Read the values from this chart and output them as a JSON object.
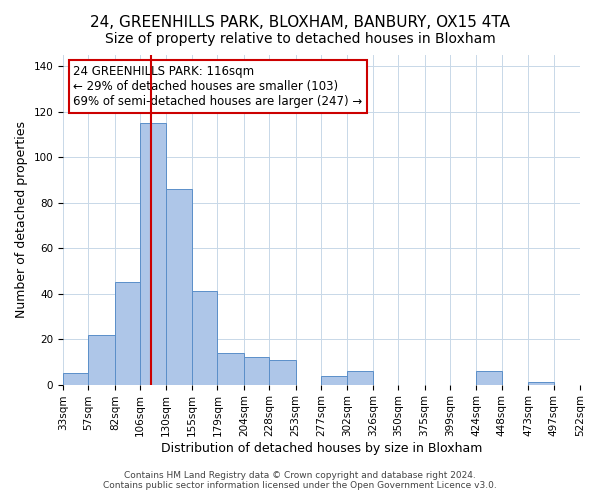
{
  "title": "24, GREENHILLS PARK, BLOXHAM, BANBURY, OX15 4TA",
  "subtitle": "Size of property relative to detached houses in Bloxham",
  "xlabel": "Distribution of detached houses by size in Bloxham",
  "ylabel": "Number of detached properties",
  "bin_edges": [
    33,
    57,
    82,
    106,
    130,
    155,
    179,
    204,
    228,
    253,
    277,
    302,
    326,
    350,
    375,
    399,
    424,
    448,
    473,
    497,
    522
  ],
  "bar_heights": [
    5,
    22,
    45,
    115,
    86,
    41,
    14,
    12,
    11,
    0,
    4,
    6,
    0,
    0,
    0,
    0,
    6,
    0,
    1,
    0
  ],
  "bar_color": "#aec6e8",
  "bar_edge_color": "#5b8fc9",
  "bar_alpha": 0.85,
  "vline_x": 116,
  "vline_color": "#cc0000",
  "ylim": [
    0,
    145
  ],
  "yticks": [
    0,
    20,
    40,
    60,
    80,
    100,
    120,
    140
  ],
  "tick_labels": [
    "33sqm",
    "57sqm",
    "82sqm",
    "106sqm",
    "130sqm",
    "155sqm",
    "179sqm",
    "204sqm",
    "228sqm",
    "253sqm",
    "277sqm",
    "302sqm",
    "326sqm",
    "350sqm",
    "375sqm",
    "399sqm",
    "424sqm",
    "448sqm",
    "473sqm",
    "497sqm",
    "522sqm"
  ],
  "annotation_title": "24 GREENHILLS PARK: 116sqm",
  "annotation_line2": "← 29% of detached houses are smaller (103)",
  "annotation_line3": "69% of semi-detached houses are larger (247) →",
  "annotation_box_color": "#ffffff",
  "annotation_box_edge": "#cc0000",
  "footer1": "Contains HM Land Registry data © Crown copyright and database right 2024.",
  "footer2": "Contains public sector information licensed under the Open Government Licence v3.0.",
  "bg_color": "#ffffff",
  "grid_color": "#c8d8e8",
  "title_fontsize": 11,
  "subtitle_fontsize": 10,
  "axis_label_fontsize": 9,
  "tick_fontsize": 7.5,
  "annotation_fontsize": 8.5,
  "footer_fontsize": 6.5
}
